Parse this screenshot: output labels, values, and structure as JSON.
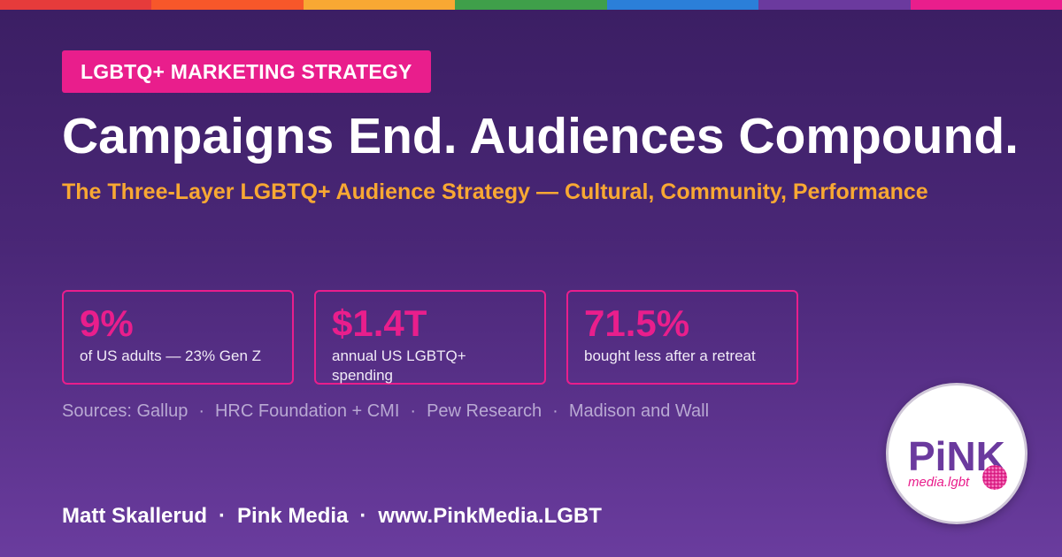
{
  "colors": {
    "rainbow": [
      "#e63b3b",
      "#f7572a",
      "#f8a833",
      "#3f9f4a",
      "#2b7fd9",
      "#6b3a9e",
      "#e91e8c"
    ],
    "accent_pink": "#e91e8c",
    "accent_orange": "#f8a833"
  },
  "tag": "LGBTQ+ MARKETING STRATEGY",
  "title": "Campaigns End. Audiences Compound.",
  "subtitle": "The Three-Layer LGBTQ+ Audience Strategy — Cultural, Community, Performance",
  "stats": [
    {
      "value": "9%",
      "label": "of US adults — 23% Gen Z"
    },
    {
      "value": "$1.4T",
      "label": "annual US LGBTQ+ spending"
    },
    {
      "value": "71.5%",
      "label": "bought less after a retreat"
    }
  ],
  "sources": {
    "prefix": "Sources:",
    "items": [
      "Gallup",
      "HRC Foundation + CMI",
      "Pew Research",
      "Madison and Wall"
    ],
    "separator": "·"
  },
  "footer": {
    "author": "Matt Skallerud",
    "company": "Pink Media",
    "url": "www.PinkMedia.LGBT",
    "separator": "·"
  },
  "logo": {
    "wordmark": "PiNK",
    "domain": "media.lgbt"
  }
}
